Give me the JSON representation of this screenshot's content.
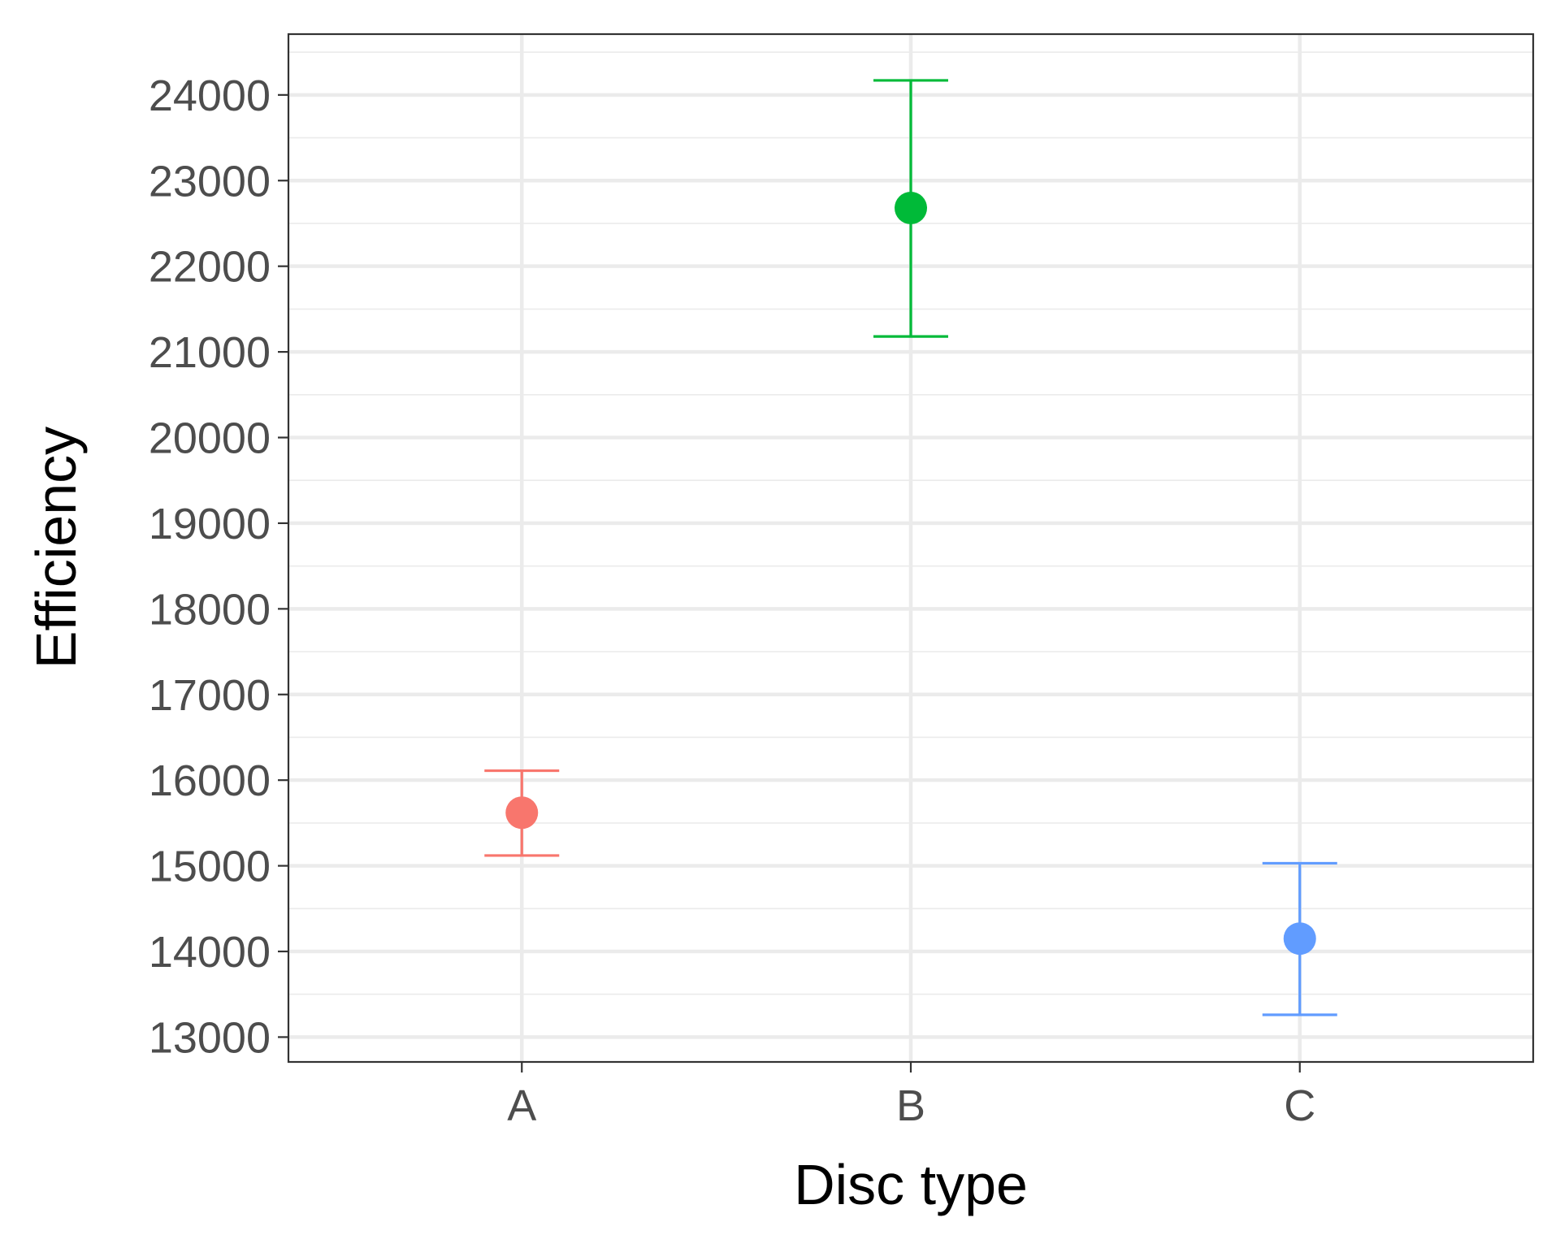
{
  "chart_data": {
    "type": "scatter",
    "subtype": "point-with-error-bars",
    "title": "",
    "xlabel": "Disc type",
    "ylabel": "Efficiency",
    "categories": [
      "A",
      "B",
      "C"
    ],
    "values": [
      15620,
      22680,
      14150
    ],
    "error_low": [
      15120,
      21180,
      13260
    ],
    "error_high": [
      16110,
      24170,
      15030
    ],
    "colors": [
      "#F8766D",
      "#00BA38",
      "#619CFF"
    ],
    "ylim": [
      12710,
      24710
    ],
    "yticks": [
      13000,
      14000,
      15000,
      16000,
      17000,
      18000,
      19000,
      20000,
      21000,
      22000,
      23000,
      24000
    ],
    "ytick_labels": [
      "13000",
      "14000",
      "15000",
      "16000",
      "17000",
      "18000",
      "19000",
      "20000",
      "21000",
      "22000",
      "23000",
      "24000"
    ],
    "grid": true,
    "legend": "none"
  }
}
